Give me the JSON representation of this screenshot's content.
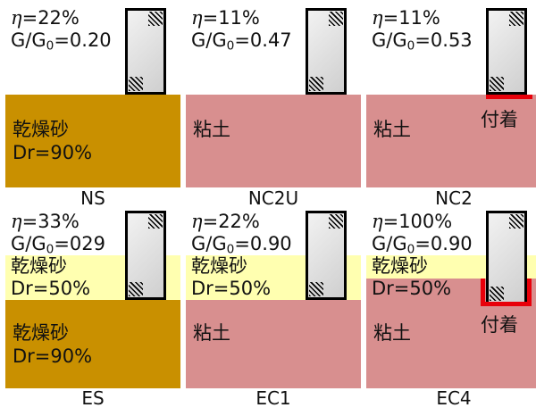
{
  "panels": [
    {
      "id": "NS",
      "caption": "NS",
      "eta_symbol": "η",
      "eta_value": "=22%",
      "g_prefix": "G/G",
      "g_sub": "0",
      "g_value": "=0.20",
      "layers": [
        {
          "type": "sand-dense",
          "label1": "乾燥砂",
          "label2": "Dr=90%"
        }
      ]
    },
    {
      "id": "NC2U",
      "caption": "NC2U",
      "eta_symbol": "η",
      "eta_value": "=11%",
      "g_prefix": "G/G",
      "g_sub": "0",
      "g_value": "=0.47",
      "layers": [
        {
          "type": "clay",
          "label1": "粘土"
        }
      ]
    },
    {
      "id": "NC2",
      "caption": "NC2",
      "eta_symbol": "η",
      "eta_value": "=11%",
      "g_prefix": "G/G",
      "g_sub": "0",
      "g_value": "=0.53",
      "adhesion_label": "付着",
      "layers": [
        {
          "type": "clay",
          "label1": "粘土"
        }
      ]
    },
    {
      "id": "ES",
      "caption": "ES",
      "eta_symbol": "η",
      "eta_value": "=33%",
      "g_prefix": "G/G",
      "g_sub": "0",
      "g_value": "=029",
      "layers": [
        {
          "type": "sand-loose",
          "label1": "乾燥砂",
          "label2": "Dr=50%"
        },
        {
          "type": "sand-dense",
          "label1": "乾燥砂",
          "label2": "Dr=90%"
        }
      ]
    },
    {
      "id": "EC1",
      "caption": "EC1",
      "eta_symbol": "η",
      "eta_value": "=22%",
      "g_prefix": "G/G",
      "g_sub": "0",
      "g_value": "=0.90",
      "layers": [
        {
          "type": "sand-loose",
          "label1": "乾燥砂",
          "label2": "Dr=50%"
        },
        {
          "type": "clay",
          "label1": "粘土"
        }
      ]
    },
    {
      "id": "EC4",
      "caption": "EC4",
      "eta_symbol": "η",
      "eta_value": "=100%",
      "g_prefix": "G/G",
      "g_sub": "0",
      "g_value": "=0.90",
      "adhesion_label": "付着",
      "layers": [
        {
          "type": "sand-loose",
          "label1": "乾燥砂",
          "label2": "Dr=50%"
        },
        {
          "type": "clay",
          "label1": "粘土"
        }
      ]
    }
  ],
  "colors": {
    "sand_dense": "#c99000",
    "sand_loose": "#ffffb0",
    "clay": "#d88f8f",
    "adhesion": "#e8000a"
  }
}
